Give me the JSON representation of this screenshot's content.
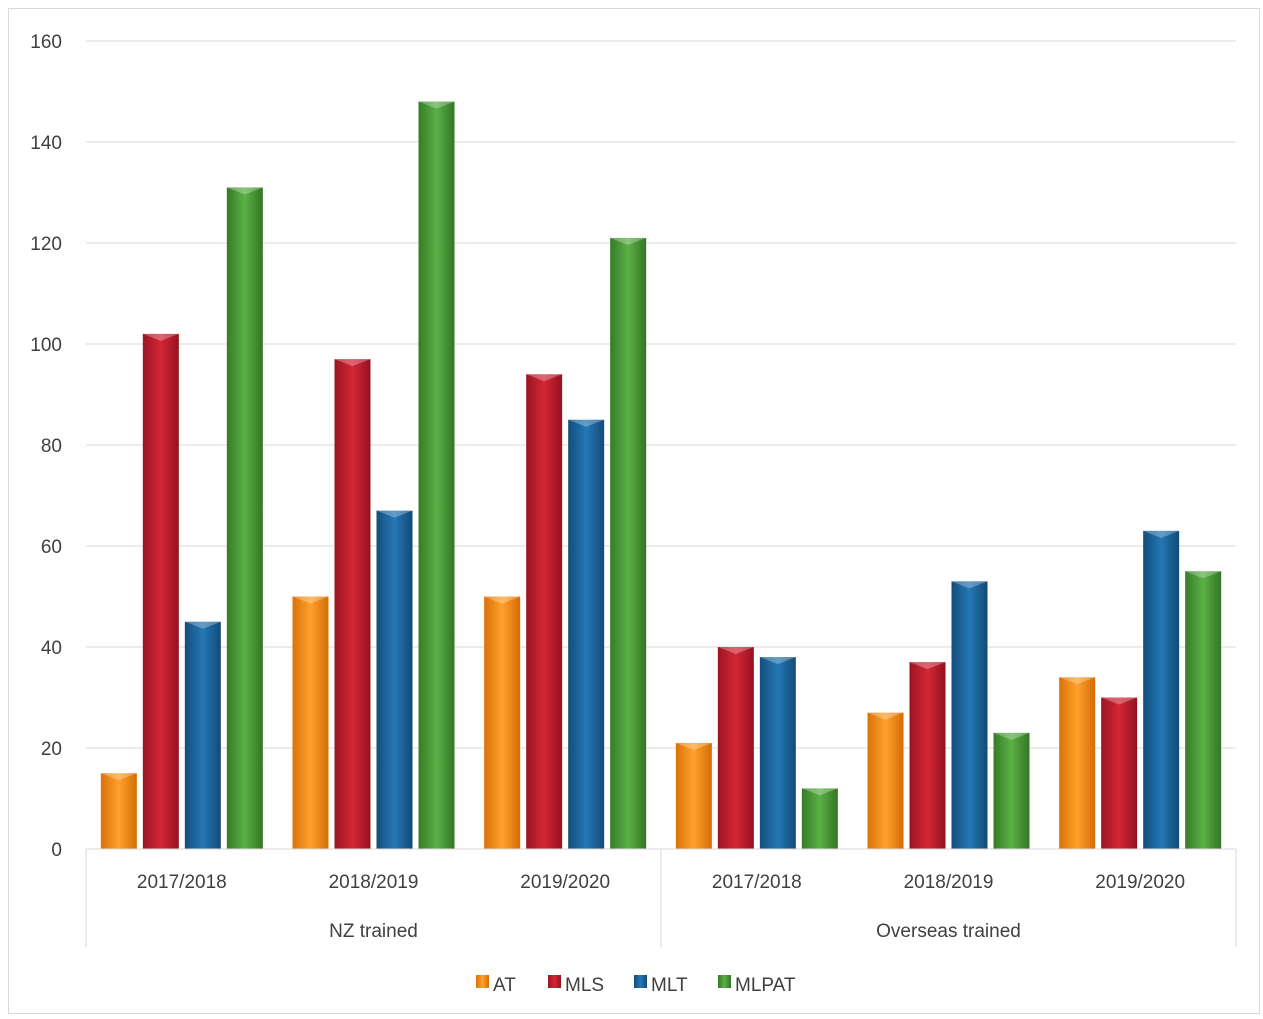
{
  "chart_data": {
    "type": "bar",
    "title": "",
    "xlabel": "",
    "ylabel": "",
    "ylim": [
      0,
      160
    ],
    "yticks": [
      0,
      20,
      40,
      60,
      80,
      100,
      120,
      140,
      160
    ],
    "grid": true,
    "legend_position": "bottom",
    "groups": [
      {
        "label": "NZ trained",
        "categories": [
          "2017/2018",
          "2018/2019",
          "2019/2020"
        ]
      },
      {
        "label": "Overseas trained",
        "categories": [
          "2017/2018",
          "2018/2019",
          "2019/2020"
        ]
      }
    ],
    "series": [
      {
        "name": "AT",
        "color": "#f79219",
        "values": [
          15,
          50,
          50,
          21,
          27,
          34
        ]
      },
      {
        "name": "MLS",
        "color": "#c0202f",
        "values": [
          102,
          97,
          94,
          40,
          37,
          30
        ]
      },
      {
        "name": "MLT",
        "color": "#1d6aa3",
        "values": [
          45,
          67,
          85,
          38,
          53,
          63
        ]
      },
      {
        "name": "MLPAT",
        "color": "#4ea13c",
        "values": [
          131,
          148,
          121,
          12,
          23,
          55
        ]
      }
    ]
  }
}
